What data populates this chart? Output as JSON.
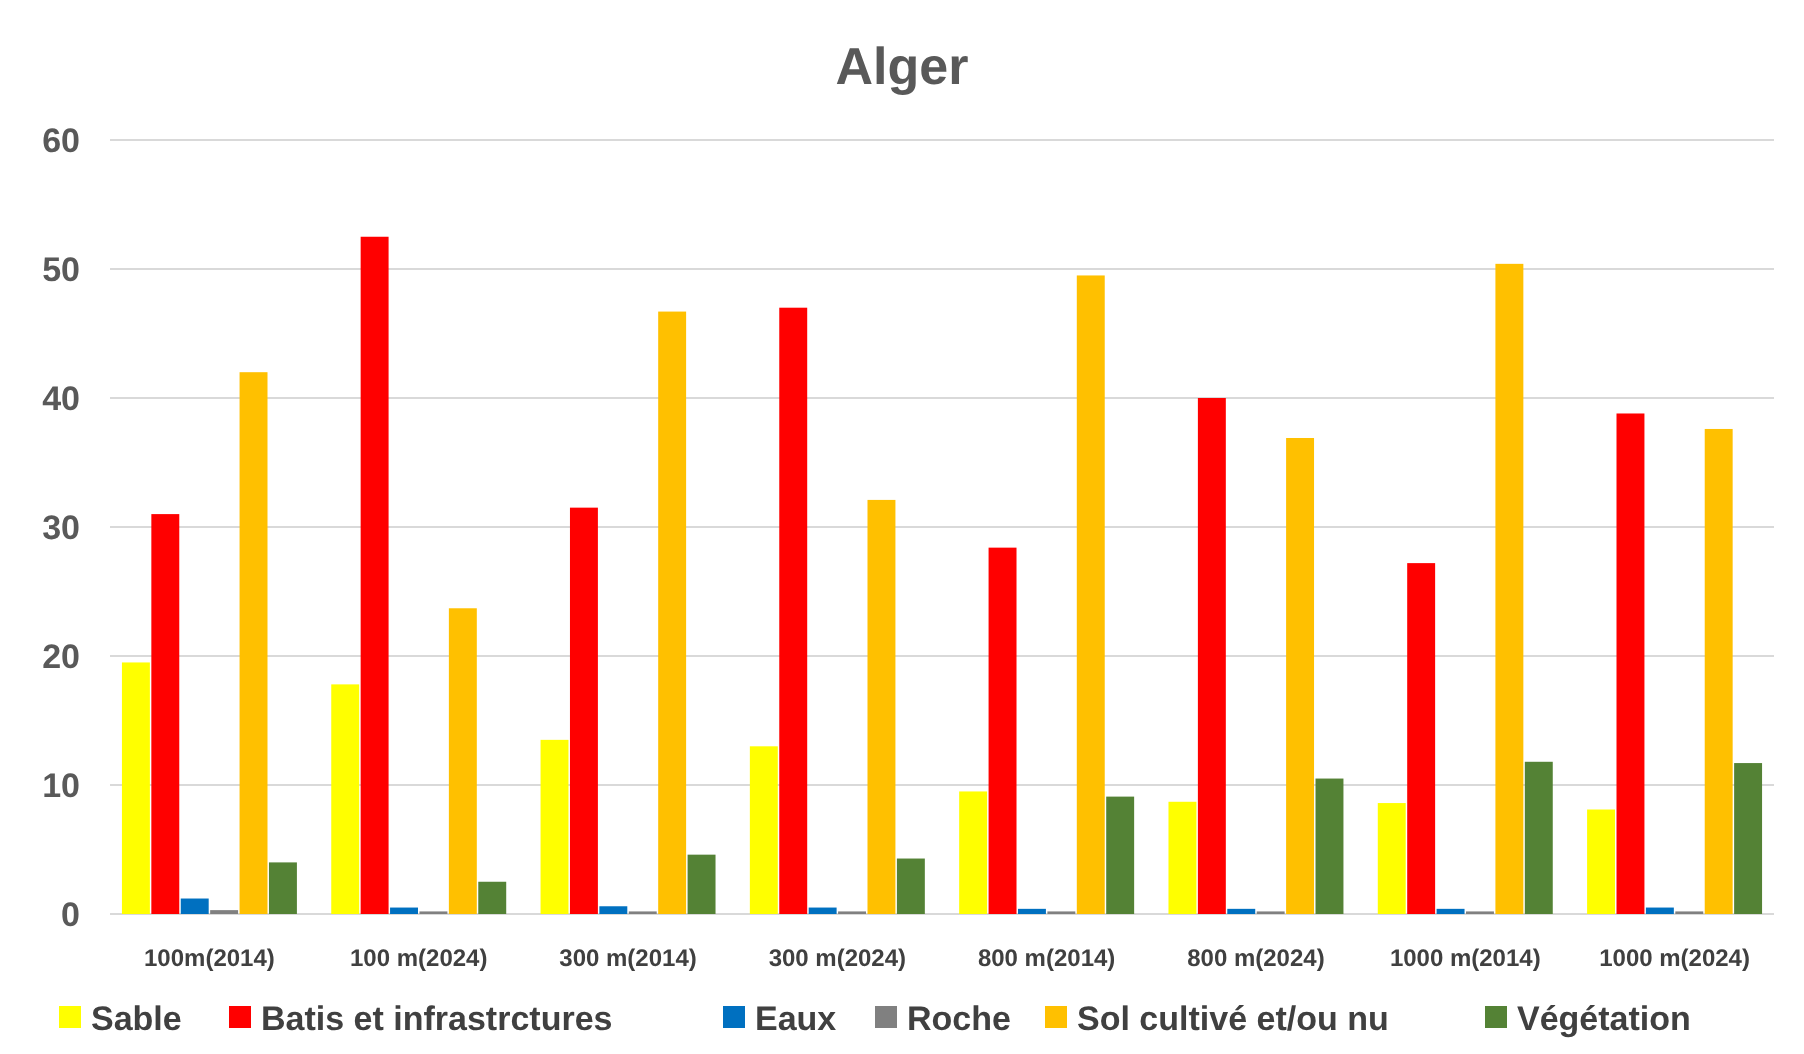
{
  "chart_data": {
    "type": "bar",
    "title": "Alger",
    "categories": [
      "100m(2014)",
      "100 m(2024)",
      "300 m(2014)",
      "300 m(2024)",
      "800 m(2014)",
      "800 m(2024)",
      "1000 m(2014)",
      "1000 m(2024)"
    ],
    "series": [
      {
        "name": "Sable",
        "color": "#ffff00",
        "values": [
          19.5,
          17.8,
          13.5,
          13,
          9.5,
          8.7,
          8.6,
          8.1
        ]
      },
      {
        "name": "Batis et infrastrctures",
        "color": "#ff0000",
        "values": [
          31,
          52.5,
          31.5,
          47,
          28.4,
          40,
          27.2,
          38.8
        ]
      },
      {
        "name": "Eaux",
        "color": "#0070c0",
        "values": [
          1.2,
          0.5,
          0.6,
          0.5,
          0.4,
          0.4,
          0.4,
          0.5
        ]
      },
      {
        "name": "Roche",
        "color": "#808080",
        "values": [
          0.3,
          0.2,
          0.2,
          0.2,
          0.2,
          0.2,
          0.2,
          0.2
        ]
      },
      {
        "name": "Sol cultivé et/ou nu",
        "color": "#ffc000",
        "values": [
          42,
          23.7,
          46.7,
          32.1,
          49.5,
          36.9,
          50.4,
          37.6
        ]
      },
      {
        "name": "Végétation",
        "color": "#548235",
        "values": [
          4,
          2.5,
          4.6,
          4.3,
          9.1,
          10.5,
          11.8,
          11.7
        ]
      }
    ],
    "ylim": [
      0,
      60
    ],
    "yticks": [
      0,
      10,
      20,
      30,
      40,
      50,
      60
    ],
    "grid": "y",
    "legend": "bottom"
  }
}
